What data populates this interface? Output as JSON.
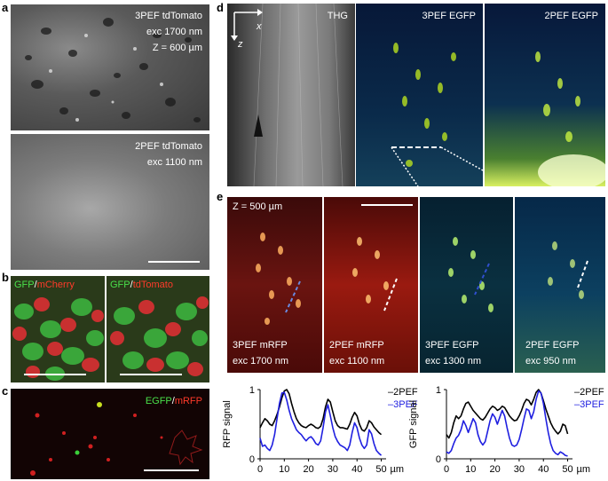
{
  "panels": {
    "a": {
      "label": "a",
      "top": {
        "lines": [
          "3PEF tdTomato",
          "exc 1700 nm",
          "Z = 600 µm"
        ]
      },
      "bottom": {
        "lines": [
          "2PEF tdTomato",
          "exc 1100 nm"
        ]
      }
    },
    "b": {
      "label": "b",
      "left": {
        "green": "GFP",
        "slash": "/",
        "red": "mCherry"
      },
      "right": {
        "green": "GFP",
        "slash": "/",
        "red": "tdTomato"
      }
    },
    "c": {
      "label": "c",
      "legend": {
        "green": "EGFP",
        "slash": "/",
        "red": "mRFP"
      }
    },
    "d": {
      "label": "d",
      "axis_x": "x",
      "axis_z": "z",
      "titles": [
        "THG",
        "3PEF EGFP",
        "2PEF EGFP"
      ]
    },
    "e": {
      "label": "e",
      "depth": "Z = 500 µm",
      "images": [
        {
          "line1": "3PEF mRFP",
          "line2": "exc 1700 nm"
        },
        {
          "line1": "2PEF mRFP",
          "line2": "exc 1100 nm"
        },
        {
          "line1": "3PEF EGFP",
          "line2": "exc 1300 nm"
        },
        {
          "line1": "2PEF EGFP",
          "line2": "exc 950 nm"
        }
      ]
    }
  },
  "colors": {
    "twoPEF": "#000000",
    "threePEF": "#1f1fe0",
    "rfp_red": "#ff3a2a",
    "gfp_green": "#49e04a"
  },
  "chart_data": [
    {
      "type": "line",
      "ylabel": "RFP signal",
      "xunit": "µm",
      "xlim": [
        0,
        52
      ],
      "ylim": [
        0,
        1
      ],
      "xticks": [
        "0",
        "10",
        "20",
        "30",
        "40",
        "50"
      ],
      "yticks": [
        "0",
        "1"
      ],
      "legend": [
        "–2PEF",
        "–3PEF"
      ],
      "series": [
        {
          "name": "2PEF",
          "color": "#000000",
          "x": [
            0,
            1,
            2,
            3,
            4,
            5,
            6,
            7,
            8,
            9,
            10,
            11,
            12,
            13,
            14,
            15,
            16,
            17,
            18,
            19,
            20,
            21,
            22,
            23,
            24,
            25,
            26,
            27,
            28,
            29,
            30,
            31,
            32,
            33,
            34,
            35,
            36,
            37,
            38,
            39,
            40,
            41,
            42,
            43,
            44,
            45,
            46,
            47,
            48,
            49,
            50
          ],
          "values": [
            0.45,
            0.52,
            0.58,
            0.55,
            0.5,
            0.48,
            0.55,
            0.64,
            0.75,
            0.88,
            0.98,
            1.0,
            0.94,
            0.8,
            0.68,
            0.58,
            0.52,
            0.48,
            0.46,
            0.45,
            0.48,
            0.5,
            0.48,
            0.45,
            0.44,
            0.47,
            0.58,
            0.75,
            0.86,
            0.82,
            0.68,
            0.55,
            0.48,
            0.45,
            0.45,
            0.44,
            0.43,
            0.5,
            0.6,
            0.67,
            0.62,
            0.5,
            0.42,
            0.4,
            0.45,
            0.55,
            0.52,
            0.46,
            0.42,
            0.38,
            0.35
          ]
        },
        {
          "name": "3PEF",
          "color": "#1f1fe0",
          "x": [
            0,
            1,
            2,
            3,
            4,
            5,
            6,
            7,
            8,
            9,
            10,
            11,
            12,
            13,
            14,
            15,
            16,
            17,
            18,
            19,
            20,
            21,
            22,
            23,
            24,
            25,
            26,
            27,
            28,
            29,
            30,
            31,
            32,
            33,
            34,
            35,
            36,
            37,
            38,
            39,
            40,
            41,
            42,
            43,
            44,
            45,
            46,
            47,
            48,
            49,
            50
          ],
          "values": [
            0.3,
            0.18,
            0.2,
            0.15,
            0.12,
            0.2,
            0.35,
            0.58,
            0.8,
            0.95,
            0.96,
            0.85,
            0.7,
            0.58,
            0.5,
            0.42,
            0.38,
            0.35,
            0.3,
            0.26,
            0.3,
            0.32,
            0.28,
            0.22,
            0.2,
            0.26,
            0.45,
            0.68,
            0.78,
            0.62,
            0.45,
            0.32,
            0.25,
            0.2,
            0.18,
            0.16,
            0.12,
            0.2,
            0.38,
            0.52,
            0.45,
            0.3,
            0.2,
            0.15,
            0.2,
            0.42,
            0.36,
            0.22,
            0.12,
            0.08,
            0.05
          ]
        }
      ]
    },
    {
      "type": "line",
      "ylabel": "GFP signal",
      "xunit": "µm",
      "xlim": [
        0,
        52
      ],
      "ylim": [
        0,
        1
      ],
      "xticks": [
        "0",
        "10",
        "20",
        "30",
        "40",
        "50"
      ],
      "yticks": [
        "0",
        "1"
      ],
      "legend": [
        "–2PEF",
        "–3PEF"
      ],
      "series": [
        {
          "name": "2PEF",
          "color": "#000000",
          "x": [
            0,
            1,
            2,
            3,
            4,
            5,
            6,
            7,
            8,
            9,
            10,
            11,
            12,
            13,
            14,
            15,
            16,
            17,
            18,
            19,
            20,
            21,
            22,
            23,
            24,
            25,
            26,
            27,
            28,
            29,
            30,
            31,
            32,
            33,
            34,
            35,
            36,
            37,
            38,
            39,
            40,
            41,
            42,
            43,
            44,
            45,
            46,
            47,
            48,
            49,
            50
          ],
          "values": [
            0.35,
            0.3,
            0.38,
            0.52,
            0.62,
            0.58,
            0.62,
            0.72,
            0.8,
            0.82,
            0.76,
            0.7,
            0.66,
            0.62,
            0.58,
            0.56,
            0.6,
            0.66,
            0.72,
            0.76,
            0.74,
            0.7,
            0.72,
            0.76,
            0.74,
            0.68,
            0.62,
            0.58,
            0.55,
            0.56,
            0.62,
            0.7,
            0.8,
            0.86,
            0.84,
            0.78,
            0.86,
            0.96,
            1.0,
            0.95,
            0.84,
            0.72,
            0.62,
            0.52,
            0.45,
            0.4,
            0.36,
            0.4,
            0.5,
            0.48,
            0.36
          ]
        },
        {
          "name": "3PEF",
          "color": "#1f1fe0",
          "x": [
            0,
            1,
            2,
            3,
            4,
            5,
            6,
            7,
            8,
            9,
            10,
            11,
            12,
            13,
            14,
            15,
            16,
            17,
            18,
            19,
            20,
            21,
            22,
            23,
            24,
            25,
            26,
            27,
            28,
            29,
            30,
            31,
            32,
            33,
            34,
            35,
            36,
            37,
            38,
            39,
            40,
            41,
            42,
            43,
            44,
            45,
            46,
            47,
            48,
            49,
            50
          ],
          "values": [
            0.1,
            0.08,
            0.12,
            0.22,
            0.3,
            0.34,
            0.42,
            0.55,
            0.48,
            0.38,
            0.48,
            0.58,
            0.52,
            0.35,
            0.25,
            0.2,
            0.25,
            0.4,
            0.55,
            0.65,
            0.6,
            0.5,
            0.6,
            0.7,
            0.62,
            0.45,
            0.3,
            0.2,
            0.18,
            0.2,
            0.28,
            0.42,
            0.58,
            0.72,
            0.7,
            0.58,
            0.68,
            0.86,
            0.98,
            0.95,
            0.8,
            0.58,
            0.38,
            0.22,
            0.12,
            0.08,
            0.06,
            0.1,
            0.08,
            0.05,
            0.04
          ]
        }
      ]
    }
  ]
}
